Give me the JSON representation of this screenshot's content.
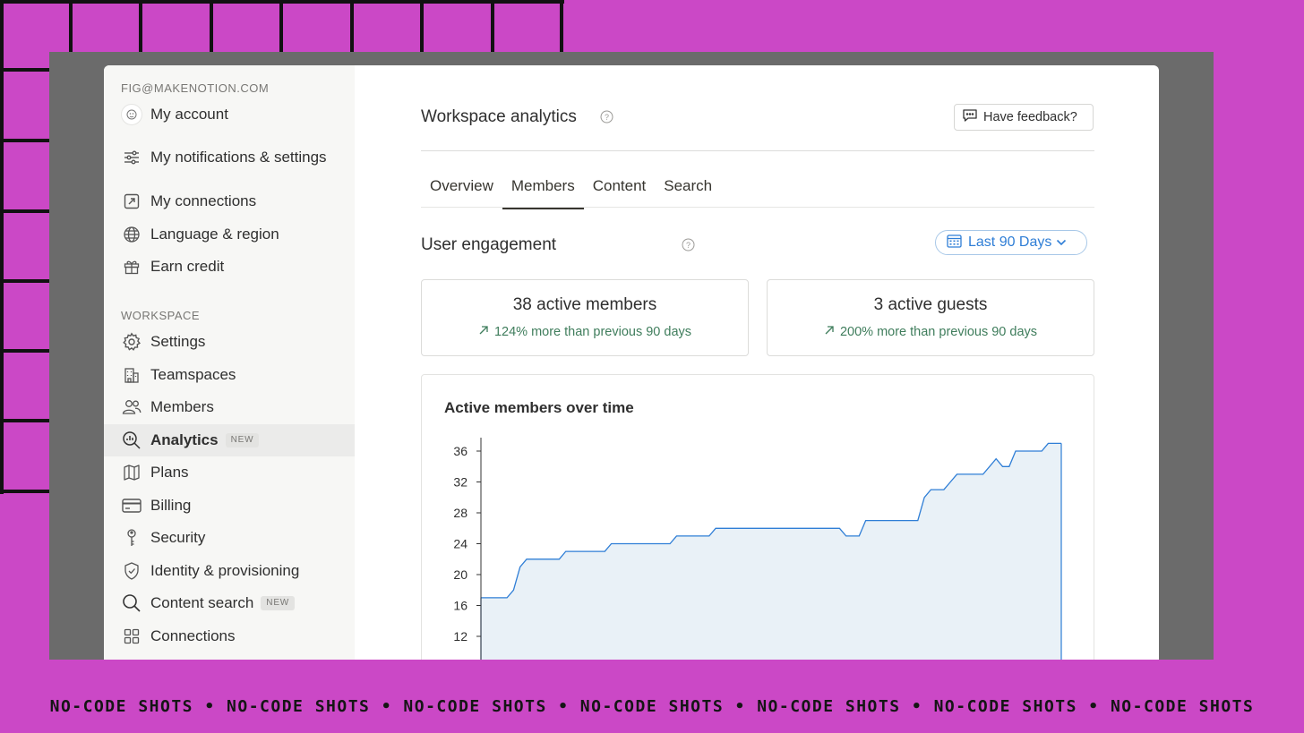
{
  "account": {
    "email": "FIG@MAKENOTION.COM",
    "items": [
      {
        "label": "My account",
        "icon": "avatar-icon"
      },
      {
        "label": "My notifications & settings",
        "icon": "sliders-icon"
      },
      {
        "label": "My connections",
        "icon": "external-link-icon"
      },
      {
        "label": "Language & region",
        "icon": "globe-icon"
      },
      {
        "label": "Earn credit",
        "icon": "gift-icon"
      }
    ]
  },
  "workspace": {
    "heading": "WORKSPACE",
    "items": [
      {
        "label": "Settings",
        "icon": "gear-icon"
      },
      {
        "label": "Teamspaces",
        "icon": "building-icon"
      },
      {
        "label": "Members",
        "icon": "people-icon"
      },
      {
        "label": "Analytics",
        "icon": "analytics-search-icon",
        "badge": "NEW",
        "active": true
      },
      {
        "label": "Plans",
        "icon": "map-icon"
      },
      {
        "label": "Billing",
        "icon": "credit-card-icon"
      },
      {
        "label": "Security",
        "icon": "key-icon"
      },
      {
        "label": "Identity & provisioning",
        "icon": "shield-check-icon"
      },
      {
        "label": "Content search",
        "icon": "search-icon",
        "badge": "NEW"
      },
      {
        "label": "Connections",
        "icon": "grid-icon"
      }
    ]
  },
  "main": {
    "title": "Workspace analytics",
    "feedback_label": "Have feedback?",
    "tabs": [
      "Overview",
      "Members",
      "Content",
      "Search"
    ],
    "active_tab": "Members",
    "section_title": "User engagement",
    "date_range": "Last 90 Days",
    "stats": [
      {
        "value": "38 active members",
        "delta": "124% more than previous 90 days"
      },
      {
        "value": "3 active guests",
        "delta": "200% more than previous 90 days"
      }
    ]
  },
  "chart_data": {
    "type": "area",
    "title": "Active members over time",
    "xlabel": "",
    "ylabel": "",
    "yticks": [
      12,
      16,
      20,
      24,
      28,
      32,
      36
    ],
    "ylim_visible": [
      10,
      38
    ],
    "x": [
      0,
      1,
      2,
      3,
      4,
      5,
      6,
      7,
      8,
      9,
      10,
      11,
      12,
      13,
      14,
      15,
      16,
      17,
      18,
      19,
      20,
      21,
      22,
      23,
      24,
      25,
      26,
      27,
      28,
      29,
      30,
      31,
      32,
      33,
      34,
      35,
      36,
      37,
      38,
      39,
      40,
      41,
      42,
      43,
      44,
      45,
      46,
      47,
      48,
      49,
      50,
      51,
      52,
      53,
      54,
      55,
      56,
      57,
      58,
      59,
      60,
      61,
      62,
      63,
      64,
      65,
      66,
      67,
      68,
      69,
      70,
      71,
      72,
      73,
      74,
      75,
      76,
      77,
      78,
      79,
      80,
      81,
      82,
      83,
      84,
      85,
      86,
      87,
      88,
      89
    ],
    "values": [
      17,
      17,
      17,
      17,
      17,
      18,
      21,
      22,
      22,
      22,
      22,
      22,
      22,
      23,
      23,
      23,
      23,
      23,
      23,
      23,
      24,
      24,
      24,
      24,
      24,
      24,
      24,
      24,
      24,
      24,
      25,
      25,
      25,
      25,
      25,
      25,
      26,
      26,
      26,
      26,
      26,
      26,
      26,
      26,
      26,
      26,
      26,
      26,
      26,
      26,
      26,
      26,
      26,
      26,
      26,
      26,
      25,
      25,
      25,
      27,
      27,
      27,
      27,
      27,
      27,
      27,
      27,
      27,
      30,
      31,
      31,
      31,
      32,
      33,
      33,
      33,
      33,
      33,
      34,
      35,
      34,
      34,
      36,
      36,
      36,
      36,
      36,
      37,
      37,
      37
    ],
    "series_color": "#2f7ed6",
    "fill_color": "#e9f1f7",
    "grid": false
  },
  "banner": {
    "text": "NO-CODE SHOTS • NO-CODE SHOTS • NO-CODE SHOTS • NO-CODE SHOTS • NO-CODE SHOTS • NO-CODE SHOTS • NO-CODE SHOTS"
  },
  "colors": {
    "background": "#cb48c6",
    "accent": "#2f7ed6",
    "positive": "#3f7d5c"
  }
}
